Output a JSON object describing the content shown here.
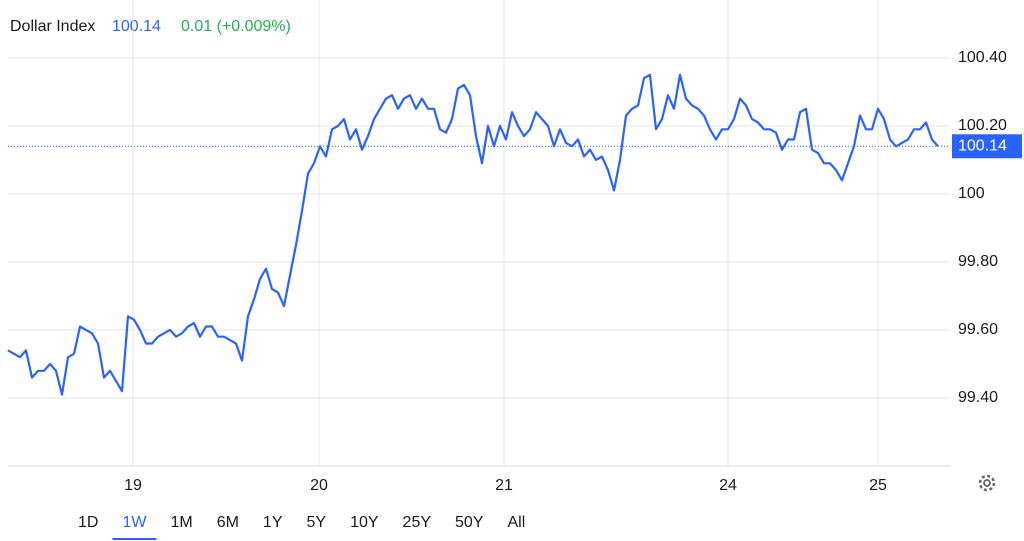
{
  "chart_data": {
    "type": "line",
    "title": "Dollar Index",
    "last_price": 100.14,
    "change": "0.01 (+0.009%)",
    "series": [
      {
        "name": "Dollar Index",
        "color": "#2962ff",
        "values": [
          99.54,
          99.53,
          99.52,
          99.54,
          99.46,
          99.48,
          99.48,
          99.5,
          99.48,
          99.41,
          99.52,
          99.53,
          99.61,
          99.6,
          99.59,
          99.56,
          99.46,
          99.48,
          99.45,
          99.42,
          99.64,
          99.63,
          99.6,
          99.56,
          99.56,
          99.58,
          99.59,
          99.6,
          99.58,
          99.59,
          99.61,
          99.62,
          99.58,
          99.61,
          99.61,
          99.58,
          99.58,
          99.57,
          99.56,
          99.51,
          99.64,
          99.69,
          99.75,
          99.78,
          99.72,
          99.71,
          99.67,
          99.76,
          99.85,
          99.95,
          100.06,
          100.09,
          100.14,
          100.11,
          100.19,
          100.2,
          100.22,
          100.16,
          100.19,
          100.13,
          100.17,
          100.22,
          100.25,
          100.28,
          100.29,
          100.25,
          100.28,
          100.29,
          100.25,
          100.28,
          100.25,
          100.25,
          100.19,
          100.18,
          100.22,
          100.31,
          100.32,
          100.29,
          100.17,
          100.09,
          100.2,
          100.14,
          100.2,
          100.16,
          100.24,
          100.2,
          100.17,
          100.19,
          100.24,
          100.22,
          100.2,
          100.14,
          100.19,
          100.15,
          100.14,
          100.16,
          100.11,
          100.13,
          100.1,
          100.11,
          100.07,
          100.01,
          100.1,
          100.23,
          100.25,
          100.26,
          100.34,
          100.35,
          100.19,
          100.22,
          100.29,
          100.25,
          100.35,
          100.28,
          100.26,
          100.25,
          100.23,
          100.19,
          100.16,
          100.19,
          100.19,
          100.22,
          100.28,
          100.26,
          100.22,
          100.21,
          100.19,
          100.19,
          100.18,
          100.13,
          100.16,
          100.16,
          100.24,
          100.25,
          100.13,
          100.12,
          100.09,
          100.09,
          100.07,
          100.04,
          100.09,
          100.14,
          100.23,
          100.19,
          100.19,
          100.25,
          100.22,
          100.16,
          100.14,
          100.15,
          100.16,
          100.19,
          100.19,
          100.21,
          100.16,
          100.14
        ]
      }
    ],
    "xlim": [
      0,
      157
    ],
    "xticks": [
      {
        "value": 20.83,
        "label": "19"
      },
      {
        "value": 51.83,
        "label": "20"
      },
      {
        "value": 82.67,
        "label": "21"
      },
      {
        "value": 120,
        "label": "24"
      },
      {
        "value": 145,
        "label": "25"
      }
    ],
    "ylim": [
      99.2,
      100.57
    ],
    "yticks": [
      {
        "value": 100.4,
        "label": "100.40"
      },
      {
        "value": 100.2,
        "label": "100.20"
      },
      100,
      {
        "value": 99.8,
        "label": "99.80"
      },
      {
        "value": 99.6,
        "label": "99.60"
      },
      {
        "value": 99.4,
        "label": "99.40"
      }
    ],
    "grid": true,
    "range_buttons": [
      "1D",
      "1W",
      "1M",
      "6M",
      "1Y",
      "5Y",
      "10Y",
      "25Y",
      "50Y",
      "All"
    ],
    "active_range_index": 1
  }
}
